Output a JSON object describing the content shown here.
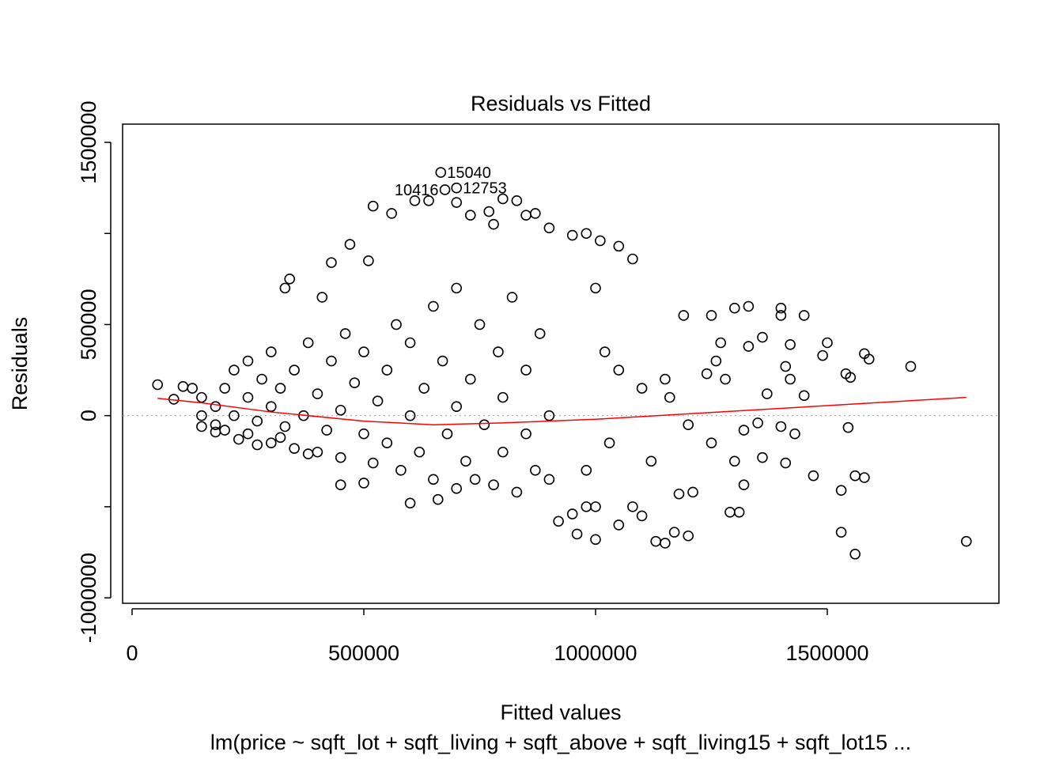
{
  "chart_data": {
    "type": "scatter",
    "title": "Residuals vs Fitted",
    "x_label": "Fitted values",
    "y_label": "Residuals",
    "subtitle": "lm(price ~ sqft_lot + sqft_living + sqft_above + sqft_living15 + sqft_lot15 ...",
    "xlim": [
      -20478,
      1870307
    ],
    "ylim": [
      -1030000,
      1600000
    ],
    "xticks": [
      0,
      500000,
      1000000,
      1500000
    ],
    "yticks": [
      -1000000,
      0,
      500000,
      1500000
    ],
    "yticks_unlabeled": [
      -500000,
      1000000
    ],
    "reference_line": 0,
    "color": "#000000",
    "x": [
      150000,
      150000,
      150000,
      180000,
      180000,
      200000,
      200000,
      220000,
      220000,
      250000,
      250000,
      250000,
      270000,
      280000,
      300000,
      300000,
      300000,
      320000,
      330000,
      350000,
      350000,
      370000,
      380000,
      400000,
      400000,
      420000,
      430000,
      450000,
      450000,
      460000,
      480000,
      500000,
      500000,
      520000,
      530000,
      550000,
      550000,
      570000,
      580000,
      600000,
      600000,
      620000,
      630000,
      650000,
      650000,
      670000,
      680000,
      700000,
      700000,
      700000,
      720000,
      730000,
      750000,
      760000,
      780000,
      790000,
      800000,
      800000,
      820000,
      830000,
      850000,
      850000,
      870000,
      880000,
      900000,
      900000,
      55000,
      90000,
      110000,
      130000,
      270000,
      330000,
      340000,
      410000,
      430000,
      470000,
      510000,
      520000,
      560000,
      610000,
      640000,
      700000,
      730000,
      770000,
      780000,
      800000,
      830000,
      850000,
      870000,
      900000,
      950000,
      980000,
      1010000,
      1050000,
      1080000,
      920000,
      950000,
      980000,
      1000000,
      1050000,
      1080000,
      1100000,
      1130000,
      1150000,
      1170000,
      1200000,
      1180000,
      1210000,
      1250000,
      1300000,
      1320000,
      1290000,
      1310000,
      1360000,
      1410000,
      1470000,
      1530000,
      1560000,
      1580000,
      1530000,
      1560000,
      1800000,
      1680000,
      1580000,
      1590000,
      1540000,
      1500000,
      1490000,
      1550000,
      1450000,
      1430000,
      1410000,
      1420000,
      1400000,
      1400000,
      1450000,
      1330000,
      1300000,
      1330000,
      1360000,
      1420000,
      1250000,
      1260000,
      1240000,
      1280000,
      1190000,
      1160000,
      1100000,
      1050000,
      1020000,
      1000000,
      980000,
      1030000,
      1120000,
      1150000,
      1200000,
      1270000,
      1350000,
      1370000,
      1400000,
      1320000,
      1545000,
      1000000,
      960000,
      740000,
      660000,
      600000,
      500000,
      450000,
      380000,
      320000,
      230000,
      180000
    ],
    "values": [
      0,
      100000,
      -60000,
      50000,
      -50000,
      150000,
      -80000,
      0,
      250000,
      100000,
      -100000,
      300000,
      -30000,
      200000,
      50000,
      -150000,
      350000,
      150000,
      -60000,
      250000,
      -180000,
      0,
      400000,
      120000,
      -200000,
      -80000,
      300000,
      30000,
      -230000,
      450000,
      180000,
      -100000,
      350000,
      -260000,
      80000,
      250000,
      -150000,
      500000,
      -300000,
      0,
      400000,
      -200000,
      150000,
      -350000,
      600000,
      300000,
      -100000,
      50000,
      -400000,
      700000,
      -250000,
      200000,
      500000,
      -50000,
      -380000,
      350000,
      100000,
      -200000,
      650000,
      -420000,
      250000,
      -100000,
      -300000,
      450000,
      0,
      -350000,
      170000,
      90000,
      160000,
      150000,
      -160000,
      700000,
      750000,
      650000,
      840000,
      940000,
      850000,
      1150000,
      1110000,
      1180000,
      1180000,
      1170000,
      1100000,
      1120000,
      1050000,
      1190000,
      1180000,
      1100000,
      1110000,
      1030000,
      990000,
      1000000,
      960000,
      930000,
      860000,
      -580000,
      -540000,
      -500000,
      -500000,
      -600000,
      -500000,
      -550000,
      -690000,
      -700000,
      -640000,
      -660000,
      -430000,
      -420000,
      -150000,
      -250000,
      -380000,
      -530000,
      -530000,
      -230000,
      -260000,
      -330000,
      -410000,
      -330000,
      -340000,
      -640000,
      -760000,
      -690000,
      270000,
      340000,
      310000,
      230000,
      400000,
      330000,
      210000,
      110000,
      -100000,
      270000,
      200000,
      590000,
      550000,
      550000,
      600000,
      590000,
      380000,
      430000,
      390000,
      550000,
      300000,
      230000,
      200000,
      550000,
      100000,
      150000,
      250000,
      350000,
      700000,
      -300000,
      -150000,
      -250000,
      200000,
      -50000,
      400000,
      -40000,
      120000,
      -60000,
      -80000,
      -65000,
      -680000,
      -650000,
      -350000,
      -460000,
      -480000,
      -370000,
      -380000,
      -210000,
      -120000,
      -130000,
      -90000
    ],
    "labeled_points": [
      {
        "label": "15040",
        "x": 666000,
        "y": 1335000
      },
      {
        "label": "12753",
        "x": 700000,
        "y": 1250000
      },
      {
        "label": "10416",
        "x": 675000,
        "y": 1240000
      }
    ],
    "smooth": {
      "color": "#ff0000",
      "x": [
        55000,
        150000,
        300000,
        500000,
        650000,
        800000,
        1000000,
        1200000,
        1400000,
        1600000,
        1800000
      ],
      "values": [
        95000,
        70000,
        20000,
        -30000,
        -50000,
        -40000,
        -20000,
        10000,
        40000,
        70000,
        100000
      ]
    }
  }
}
